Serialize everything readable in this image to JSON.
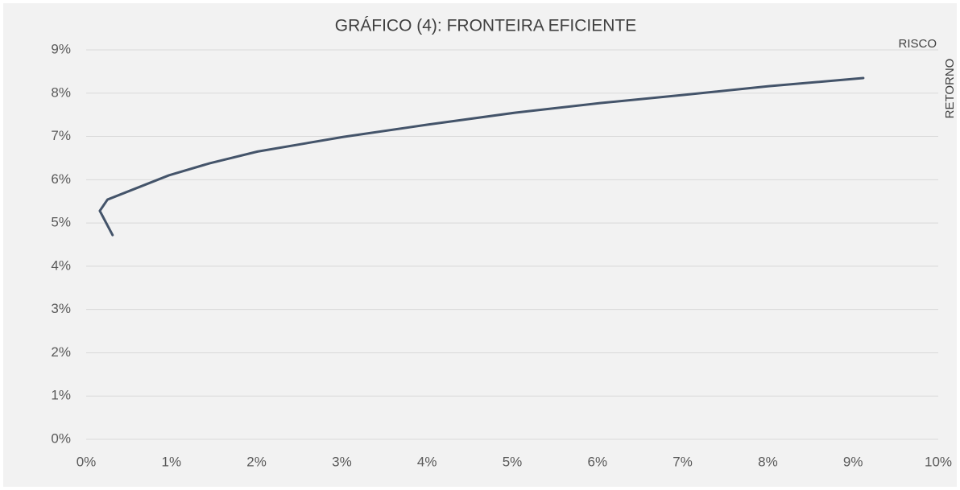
{
  "chart_data": {
    "type": "line",
    "title": "GRÁFICO (4): FRONTEIRA EFICIENTE",
    "xlabel": "RISCO",
    "ylabel": "RETORNO",
    "x": [
      0.31,
      0.16,
      0.25,
      0.97,
      1.45,
      2.01,
      3.02,
      4.0,
      5.04,
      6.03,
      7.02,
      8.01,
      9.12
    ],
    "series": [
      {
        "color": "#44546a",
        "values": [
          4.72,
          5.28,
          5.54,
          6.1,
          6.38,
          6.65,
          6.99,
          7.27,
          7.55,
          7.77,
          7.96,
          8.16,
          8.35
        ]
      }
    ],
    "xlim": [
      0,
      10
    ],
    "ylim": [
      0,
      9
    ],
    "xticks": [
      {
        "value": 0,
        "label": "0%"
      },
      {
        "value": 1,
        "label": "1%"
      },
      {
        "value": 2,
        "label": "2%"
      },
      {
        "value": 3,
        "label": "3%"
      },
      {
        "value": 4,
        "label": "4%"
      },
      {
        "value": 5,
        "label": "5%"
      },
      {
        "value": 6,
        "label": "6%"
      },
      {
        "value": 7,
        "label": "7%"
      },
      {
        "value": 8,
        "label": "8%"
      },
      {
        "value": 9,
        "label": "9%"
      },
      {
        "value": 10,
        "label": "10%"
      }
    ],
    "yticks": [
      {
        "value": 0,
        "label": "0%"
      },
      {
        "value": 1,
        "label": "1%"
      },
      {
        "value": 2,
        "label": "2%"
      },
      {
        "value": 3,
        "label": "3%"
      },
      {
        "value": 4,
        "label": "4%"
      },
      {
        "value": 5,
        "label": "5%"
      },
      {
        "value": 6,
        "label": "6%"
      },
      {
        "value": 7,
        "label": "7%"
      },
      {
        "value": 8,
        "label": "8%"
      },
      {
        "value": 9,
        "label": "9%"
      }
    ],
    "grid": true
  }
}
